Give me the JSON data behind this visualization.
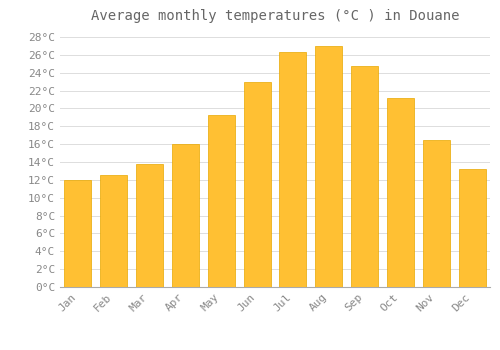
{
  "title": "Average monthly temperatures (°C ) in Douane",
  "months": [
    "Jan",
    "Feb",
    "Mar",
    "Apr",
    "May",
    "Jun",
    "Jul",
    "Aug",
    "Sep",
    "Oct",
    "Nov",
    "Dec"
  ],
  "temperatures": [
    12.0,
    12.5,
    13.8,
    16.0,
    19.3,
    23.0,
    26.3,
    27.0,
    24.8,
    21.2,
    16.5,
    13.2
  ],
  "bar_color": "#FFC033",
  "bar_edge_color": "#E8A800",
  "background_color": "#FFFFFF",
  "grid_color": "#DDDDDD",
  "text_color": "#888888",
  "ylim": [
    0,
    29
  ],
  "yticks": [
    0,
    2,
    4,
    6,
    8,
    10,
    12,
    14,
    16,
    18,
    20,
    22,
    24,
    26,
    28
  ],
  "title_fontsize": 10,
  "tick_fontsize": 8,
  "title_font_color": "#666666",
  "bar_width": 0.75
}
